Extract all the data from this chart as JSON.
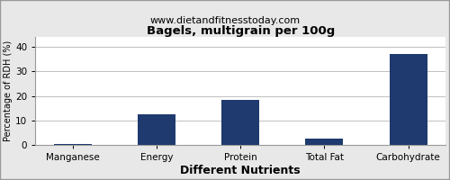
{
  "title": "Bagels, multigrain per 100g",
  "subtitle": "www.dietandfitnesstoday.com",
  "categories": [
    "Manganese",
    "Energy",
    "Protein",
    "Total Fat",
    "Carbohydrate"
  ],
  "values": [
    0.3,
    12.5,
    18.5,
    2.5,
    37.0
  ],
  "bar_color": "#1e3a6e",
  "xlabel": "Different Nutrients",
  "ylabel": "Percentage of RDH (%)",
  "ylim": [
    0,
    44
  ],
  "yticks": [
    0,
    10,
    20,
    30,
    40
  ],
  "title_fontsize": 9.5,
  "subtitle_fontsize": 8,
  "xlabel_fontsize": 9,
  "ylabel_fontsize": 7,
  "tick_fontsize": 7.5,
  "background_color": "#e8e8e8",
  "plot_bg_color": "#ffffff",
  "grid_color": "#c0c0c0",
  "border_color": "#999999"
}
